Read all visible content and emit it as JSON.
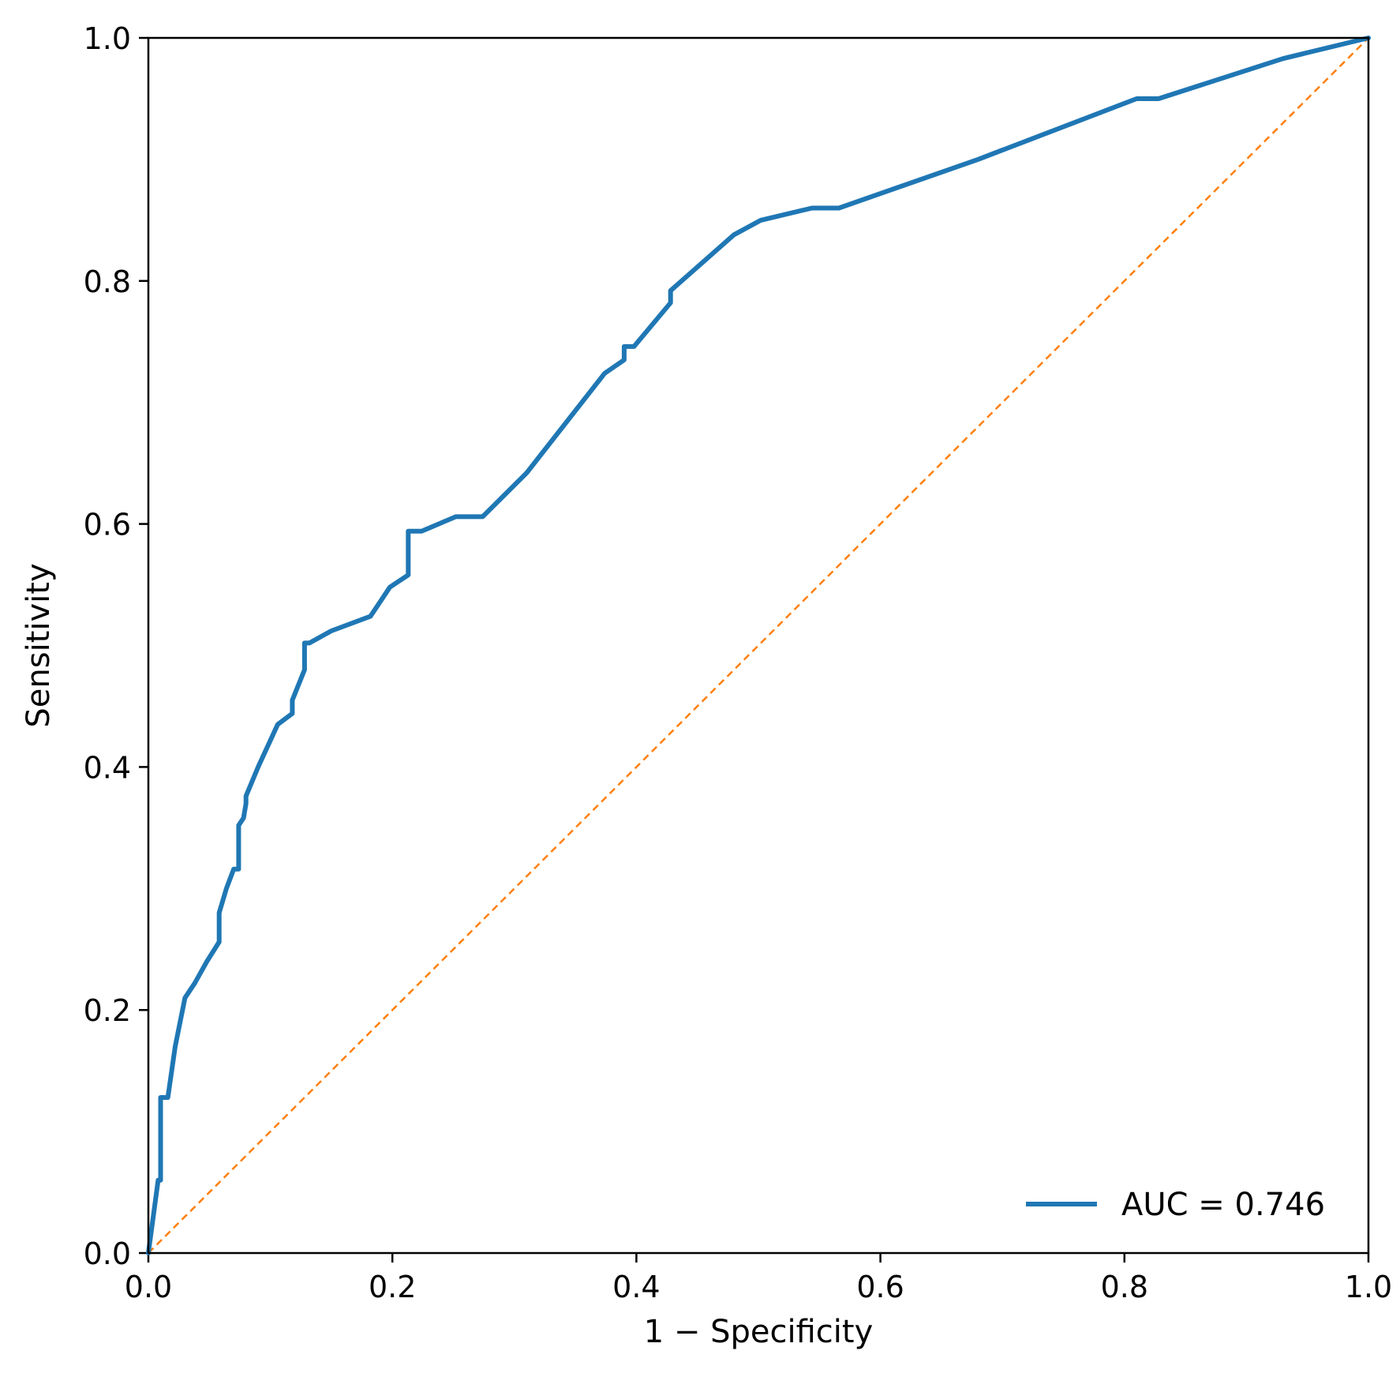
{
  "chart_data": {
    "type": "line",
    "title": "",
    "xlabel": "1 − Specificity",
    "ylabel": "Sensitivity",
    "xlim": [
      0.0,
      1.0
    ],
    "ylim": [
      0.0,
      1.0
    ],
    "xticks": [
      "0.0",
      "0.2",
      "0.4",
      "0.6",
      "0.8",
      "1.0"
    ],
    "yticks": [
      "0.0",
      "0.2",
      "0.4",
      "0.6",
      "0.8",
      "1.0"
    ],
    "grid": false,
    "legend_position": "bottom-right",
    "series": [
      {
        "name": "AUC = 0.746",
        "color": "#1f77b4",
        "style": "solid",
        "x": [
          0.0,
          0.008,
          0.01,
          0.01,
          0.016,
          0.016,
          0.022,
          0.03,
          0.038,
          0.048,
          0.058,
          0.058,
          0.064,
          0.07,
          0.074,
          0.074,
          0.078,
          0.08,
          0.08,
          0.09,
          0.106,
          0.118,
          0.118,
          0.128,
          0.128,
          0.132,
          0.15,
          0.182,
          0.198,
          0.213,
          0.213,
          0.224,
          0.252,
          0.274,
          0.31,
          0.374,
          0.39,
          0.39,
          0.398,
          0.428,
          0.428,
          0.48,
          0.502,
          0.544,
          0.566,
          0.68,
          0.81,
          0.828,
          0.93,
          1.0
        ],
        "y": [
          0.0,
          0.06,
          0.06,
          0.128,
          0.128,
          0.128,
          0.17,
          0.21,
          0.222,
          0.24,
          0.256,
          0.28,
          0.3,
          0.316,
          0.316,
          0.352,
          0.358,
          0.37,
          0.376,
          0.4,
          0.435,
          0.444,
          0.455,
          0.48,
          0.502,
          0.502,
          0.512,
          0.524,
          0.548,
          0.558,
          0.594,
          0.594,
          0.606,
          0.606,
          0.642,
          0.724,
          0.735,
          0.746,
          0.746,
          0.782,
          0.792,
          0.838,
          0.85,
          0.86,
          0.86,
          0.9,
          0.95,
          0.95,
          0.983,
          1.0
        ]
      },
      {
        "name": "",
        "color": "#ff7f0e",
        "style": "dashed",
        "x": [
          0.0,
          1.0
        ],
        "y": [
          0.0,
          1.0
        ]
      }
    ]
  }
}
